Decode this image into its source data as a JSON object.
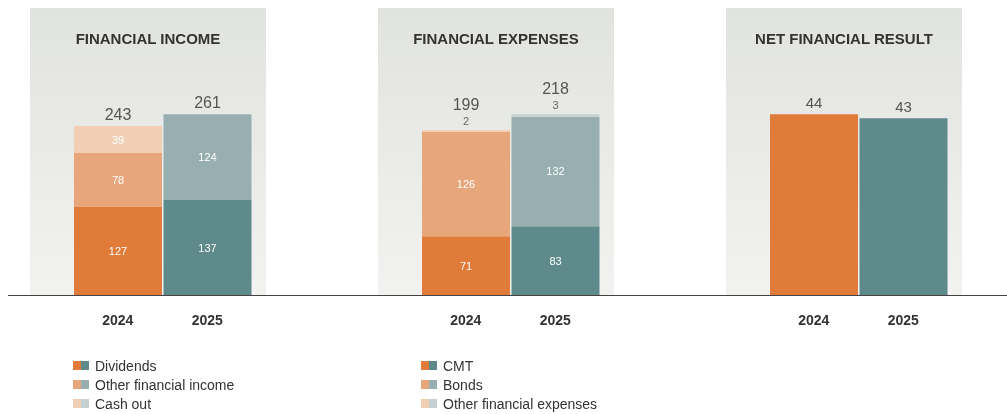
{
  "chart_data": [
    {
      "type": "bar",
      "title": "FINANCIAL INCOME",
      "categories": [
        "2024",
        "2025"
      ],
      "stacked": true,
      "data_labels": true,
      "totals": [
        "243",
        "261"
      ],
      "legend": "bottom",
      "series": [
        {
          "name": "Dividends",
          "colors": [
            "#e07b39",
            "#5f8a8b"
          ],
          "values": [
            127,
            137
          ]
        },
        {
          "name": "Other financial income",
          "colors": [
            "#e8a77a",
            "#98afb2"
          ],
          "values": [
            78,
            124
          ]
        },
        {
          "name": "Cash out",
          "colors": [
            "#f0cfb5",
            "#c4d0d2"
          ],
          "values": [
            39,
            null
          ]
        }
      ]
    },
    {
      "type": "bar",
      "title": "FINANCIAL EXPENSES",
      "categories": [
        "2024",
        "2025"
      ],
      "stacked": true,
      "data_labels": true,
      "totals": [
        "199",
        "218"
      ],
      "legend": "bottom",
      "series": [
        {
          "name": "CMT",
          "colors": [
            "#e07b39",
            "#5f8a8b"
          ],
          "values": [
            71,
            83
          ]
        },
        {
          "name": "Bonds",
          "colors": [
            "#e8a77a",
            "#98afb2"
          ],
          "values": [
            126,
            132
          ]
        },
        {
          "name": "Other financial expenses",
          "colors": [
            "#f0cfb5",
            "#c4d0d2"
          ],
          "values": [
            2,
            3
          ]
        }
      ]
    },
    {
      "type": "bar",
      "title": "NET FINANCIAL RESULT",
      "categories": [
        "2024",
        "2025"
      ],
      "data_labels": true,
      "values": [
        44,
        43
      ],
      "colors": [
        "#e07b39",
        "#5f8a8b"
      ]
    }
  ]
}
